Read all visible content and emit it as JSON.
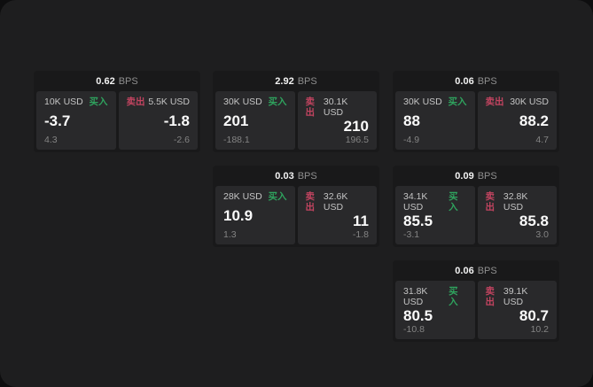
{
  "labels": {
    "buy": "买入",
    "sell": "卖出",
    "bps_suffix": "BPS"
  },
  "colors": {
    "buy_green": "#2fa35e",
    "sell_red": "#c24460",
    "window_bg": "#1e1e1f",
    "card_bg": "#19191a",
    "tile_bg": "#29292b",
    "primary_text": "#fafafa",
    "secondary_text": "#c4c4c4",
    "muted_text": "#848484"
  },
  "cards": [
    {
      "bps": "0.62",
      "buy": {
        "amount": "10K USD",
        "value": "-3.7",
        "sub": "4.3"
      },
      "sell": {
        "amount": "5.5K USD",
        "value": "-1.8",
        "sub": "-2.6"
      }
    },
    {
      "bps": "2.92",
      "buy": {
        "amount": "30K USD",
        "value": "201",
        "sub": "-188.1"
      },
      "sell": {
        "amount": "30.1K USD",
        "value": "210",
        "sub": "196.5"
      }
    },
    {
      "bps": "0.06",
      "buy": {
        "amount": "30K USD",
        "value": "88",
        "sub": "-4.9"
      },
      "sell": {
        "amount": "30K USD",
        "value": "88.2",
        "sub": "4.7"
      }
    },
    {
      "bps": "0.03",
      "buy": {
        "amount": "28K USD",
        "value": "10.9",
        "sub": "1.3"
      },
      "sell": {
        "amount": "32.6K USD",
        "value": "11",
        "sub": "-1.8"
      }
    },
    {
      "bps": "0.09",
      "buy": {
        "amount": "34.1K USD",
        "value": "85.5",
        "sub": "-3.1"
      },
      "sell": {
        "amount": "32.8K USD",
        "value": "85.8",
        "sub": "3.0"
      }
    },
    {
      "bps": "0.06",
      "buy": {
        "amount": "31.8K USD",
        "value": "80.5",
        "sub": "-10.8"
      },
      "sell": {
        "amount": "39.1K USD",
        "value": "80.7",
        "sub": "10.2"
      }
    }
  ]
}
